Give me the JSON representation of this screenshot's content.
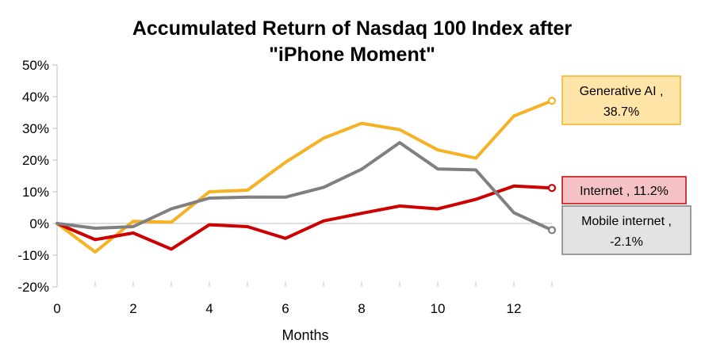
{
  "chart_data": {
    "type": "line",
    "title": "Accumulated Return of Nasdaq 100 Index after \"iPhone Moment\"",
    "xlabel": "Months",
    "ylabel": "",
    "x": [
      0,
      1,
      2,
      3,
      4,
      5,
      6,
      7,
      8,
      9,
      10,
      11,
      12,
      13
    ],
    "x_ticks": [
      "0",
      "2",
      "4",
      "6",
      "8",
      "10",
      "12"
    ],
    "y_ticks": [
      "50%",
      "40%",
      "30%",
      "20%",
      "10%",
      "0%",
      "-10%",
      "-20%"
    ],
    "xlim": [
      0,
      13
    ],
    "ylim": [
      -20,
      50
    ],
    "grid": false,
    "legend": "none",
    "series": [
      {
        "name": "Generative AI",
        "color": "#F5B225",
        "values": [
          0,
          -9,
          0.7,
          0.4,
          10,
          10.5,
          19.3,
          26.9,
          31.6,
          29.6,
          23.2,
          20.6,
          33.9,
          38.7
        ],
        "end_label": "Generative AI , 38.7%",
        "label_fill": "#FFE5A8"
      },
      {
        "name": "Internet",
        "color": "#CC0000",
        "values": [
          0,
          -5.1,
          -3,
          -8.1,
          -0.4,
          -1,
          -4.7,
          0.8,
          3.2,
          5.5,
          4.6,
          7.6,
          11.8,
          11.2
        ],
        "end_label": "Internet , 11.2%",
        "label_fill": "#F6C1C5"
      },
      {
        "name": "Mobile internet",
        "color": "#808080",
        "values": [
          0,
          -1.5,
          -1,
          4.6,
          8,
          8.3,
          8.3,
          11.4,
          17.1,
          25.5,
          17.2,
          16.9,
          3.4,
          -2.1
        ],
        "end_label": "Mobile internet , -2.1%",
        "label_fill": "#E3E3E3"
      }
    ]
  }
}
